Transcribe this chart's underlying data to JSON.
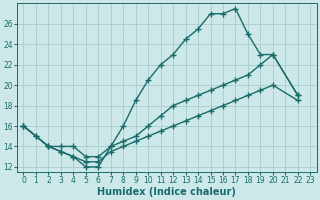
{
  "bg_color": "#cce8e8",
  "grid_color": "#aacccc",
  "line_color": "#1a6b6b",
  "line_width": 1.0,
  "marker": "+",
  "marker_size": 4,
  "marker_edge_width": 1.0,
  "xlabel": "Humidex (Indice chaleur)",
  "xlabel_fontsize": 7,
  "tick_fontsize": 5.5,
  "xlim": [
    -0.5,
    23.5
  ],
  "ylim": [
    11.5,
    28.0
  ],
  "xticks": [
    0,
    1,
    2,
    3,
    4,
    5,
    6,
    7,
    8,
    9,
    10,
    11,
    12,
    13,
    14,
    15,
    16,
    17,
    18,
    19,
    20,
    21,
    22,
    23
  ],
  "yticks": [
    12,
    14,
    16,
    18,
    20,
    22,
    24,
    26
  ],
  "line1_x": [
    0,
    1,
    2,
    3,
    4,
    5,
    6,
    7,
    8,
    9,
    10,
    11,
    12,
    13,
    14,
    15,
    16,
    17,
    18,
    19,
    20,
    22
  ],
  "line1_y": [
    16,
    15,
    14,
    14,
    14,
    13,
    13,
    14,
    16,
    18.5,
    20.5,
    22,
    23,
    24.5,
    25.5,
    27,
    27,
    27.5,
    25,
    23,
    23,
    19
  ],
  "line2_x": [
    0,
    1,
    2,
    3,
    4,
    5,
    6,
    7,
    8,
    9,
    10,
    11,
    12,
    13,
    14,
    15,
    16,
    17,
    18,
    19,
    20,
    22
  ],
  "line2_y": [
    16,
    15,
    14,
    13.5,
    13,
    12,
    12,
    14,
    14.5,
    15,
    16,
    17,
    18,
    18.5,
    19,
    19.5,
    20,
    20.5,
    21,
    22,
    23,
    19
  ],
  "line3_x": [
    0,
    2,
    3,
    4,
    5,
    6,
    7,
    8,
    9,
    10,
    11,
    12,
    13,
    14,
    15,
    16,
    17,
    18,
    19,
    20,
    22
  ],
  "line3_y": [
    16,
    14,
    13.5,
    13,
    12.5,
    12.5,
    13.5,
    14,
    14.5,
    15,
    15.5,
    16,
    16.5,
    17,
    17.5,
    18,
    18.5,
    19,
    19.5,
    20,
    18.5
  ]
}
